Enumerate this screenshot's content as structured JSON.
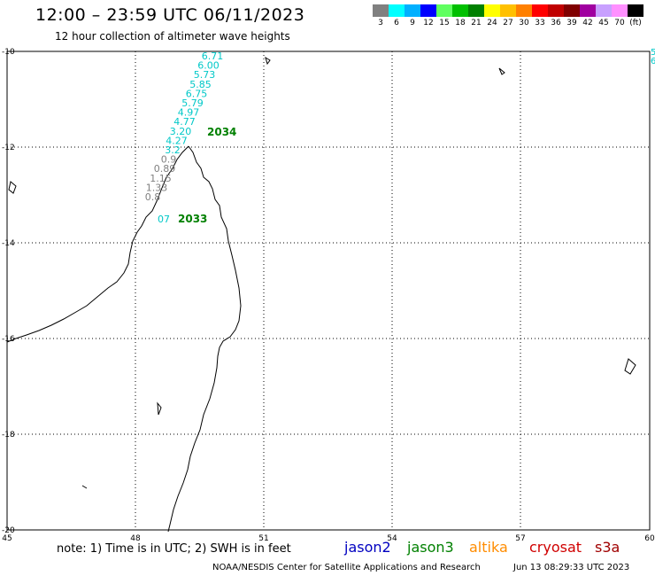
{
  "header": {
    "title": "12:00 – 23:59 UTC 06/11/2023",
    "subtitle": "12 hour collection of altimeter wave heights"
  },
  "color_scale": {
    "colors": [
      "#808080",
      "#00ffff",
      "#00b0ff",
      "#0000ff",
      "#60ff60",
      "#00c000",
      "#008000",
      "#ffff00",
      "#ffc000",
      "#ff8000",
      "#ff0000",
      "#c00000",
      "#800000",
      "#a000a0",
      "#c8a0ff",
      "#ff90ff",
      "#000000"
    ],
    "labels": [
      "3",
      "6",
      "9",
      "12",
      "15",
      "18",
      "21",
      "24",
      "27",
      "30",
      "33",
      "36",
      "39",
      "42",
      "45",
      "70",
      "(ft)"
    ]
  },
  "axes": {
    "lon_ticks": [
      "45",
      "48",
      "51",
      "54",
      "57",
      "60"
    ],
    "lat_ticks": [
      "-10",
      "-12",
      "-14",
      "-16",
      "-18",
      "-20"
    ]
  },
  "tracks": [
    {
      "label": "2034",
      "label_color": "#008000",
      "values": [
        "6.71",
        "6.00",
        "5.73",
        "5.85",
        "6.75",
        "5.79",
        "4.97",
        "4.77",
        "3.20",
        "4.27",
        "3.2",
        "0.9",
        "0.89",
        "1.15",
        "1.33",
        "0.8"
      ],
      "value_colors": [
        "#00c8c8",
        "#00c8c8",
        "#00c8c8",
        "#00c8c8",
        "#00c8c8",
        "#00c8c8",
        "#00c8c8",
        "#00c8c8",
        "#00c8c8",
        "#00c8c8",
        "#00c8c8",
        "#808080",
        "#808080",
        "#808080",
        "#808080",
        "#808080"
      ]
    },
    {
      "label": "2033",
      "label_color": "#008000",
      "values": [
        "07"
      ],
      "value_colors": [
        "#00c8c8"
      ]
    }
  ],
  "edge_values": [
    "5",
    "6"
  ],
  "footer": {
    "note": "note: 1) Time is in UTC; 2) SWH is in feet",
    "satellites": [
      {
        "name": "jason2",
        "color": "#0000c0"
      },
      {
        "name": "jason3",
        "color": "#008000"
      },
      {
        "name": "altika",
        "color": "#ff8c00"
      },
      {
        "name": "cryosat",
        "color": "#d00000"
      },
      {
        "name": "s3a",
        "color": "#a00000"
      }
    ],
    "credit": "NOAA/NESDIS Center for Satellite Applications and Research",
    "timestamp": "Jun 13 08:29:33 UTC 2023"
  }
}
